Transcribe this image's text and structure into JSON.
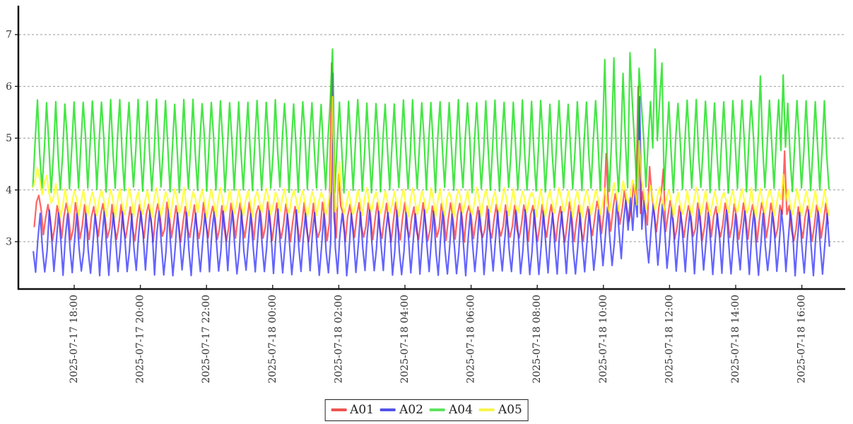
{
  "chart_data": {
    "type": "line",
    "title": "",
    "start_time": "2025-07-17 16:45",
    "end_time": "2025-07-18 16:50",
    "duration_min": 1446,
    "sample_note": "four periodic series sampled ~every 4 min, period ~17 min",
    "x_axis": {
      "tick_labels": [
        "2025-07-17 18:00",
        "2025-07-17 20:00",
        "2025-07-17 22:00",
        "2025-07-18 00:00",
        "2025-07-18 02:00",
        "2025-07-18 04:00",
        "2025-07-18 06:00",
        "2025-07-18 08:00",
        "2025-07-18 10:00",
        "2025-07-18 12:00",
        "2025-07-18 14:00",
        "2025-07-18 16:00"
      ],
      "first_tick_offset_min": 75,
      "tick_interval_min": 120,
      "label_rotation_deg": 90
    },
    "y_axis": {
      "ticks": [
        3,
        4,
        5,
        6,
        7
      ],
      "min": 2.08,
      "max": 7.53,
      "label": ""
    },
    "grid": {
      "horizontal": true,
      "style": "dashed",
      "color": "#999999"
    },
    "series": [
      {
        "name": "A01",
        "color": "#ff2a2a",
        "opacity": 0.73,
        "seed": 11,
        "pattern": {
          "min": 3.05,
          "max": 3.72,
          "period_min": 16.6,
          "phase_min": 2.5,
          "mid_jitter": 0.16
        },
        "elevations": [
          {
            "center_min": 0,
            "half_width_min": 30,
            "amount": 0.3
          },
          {
            "center_min": 1090,
            "half_width_min": 80,
            "amount": 0.35
          }
        ],
        "spikes": [
          {
            "t_min": 543.5,
            "peak": 6.45,
            "time": "2025-07-18 01:48"
          },
          {
            "t_min": 556,
            "peak": 4.3,
            "time": "2025-07-18 02:01"
          },
          {
            "t_min": 1040,
            "peak": 4.7,
            "time": "2025-07-18 10:05"
          },
          {
            "t_min": 1100,
            "peak": 6.0,
            "time": "2025-07-18 11:05"
          },
          {
            "t_min": 1120,
            "peak": 4.45,
            "time": "2025-07-18 11:25"
          },
          {
            "t_min": 1143,
            "peak": 4.4,
            "time": "2025-07-18 11:48"
          },
          {
            "t_min": 1365,
            "peak": 4.75,
            "time": "2025-07-18 15:30"
          }
        ]
      },
      {
        "name": "A02",
        "color": "#2a2aff",
        "opacity": 0.73,
        "seed": 22,
        "pattern": {
          "min": 2.4,
          "max": 3.58,
          "period_min": 16.6,
          "phase_min": 5.0,
          "mid_jitter": 0.2
        },
        "elevations": [
          {
            "center_min": 1090,
            "half_width_min": 80,
            "amount": 0.32
          }
        ],
        "spikes": [
          {
            "t_min": 544,
            "peak": 6.25,
            "time": "2025-07-18 01:49"
          },
          {
            "t_min": 1085,
            "peak": 3.85,
            "time": "2025-07-18 10:50"
          },
          {
            "t_min": 1100,
            "peak": 5.8,
            "time": "2025-07-18 11:05"
          }
        ]
      },
      {
        "name": "A04",
        "color": "#00dd00",
        "opacity": 0.73,
        "seed": 44,
        "pattern": {
          "min": 4.0,
          "max": 5.7,
          "period_min": 16.6,
          "phase_min": 0.0,
          "mid_jitter": 0.18
        },
        "elevations": [],
        "spikes": [
          {
            "t_min": 543,
            "peak": 6.72,
            "time": "2025-07-18 01:48"
          },
          {
            "t_min": 1036,
            "peak": 6.52,
            "time": "2025-07-18 10:01"
          },
          {
            "t_min": 1056,
            "peak": 6.55,
            "time": "2025-07-18 10:21"
          },
          {
            "t_min": 1071,
            "peak": 6.25,
            "time": "2025-07-18 10:36"
          },
          {
            "t_min": 1085,
            "peak": 6.65,
            "time": "2025-07-18 10:50"
          },
          {
            "t_min": 1098,
            "peak": 6.35,
            "time": "2025-07-18 11:03"
          },
          {
            "t_min": 1130,
            "peak": 6.72,
            "time": "2025-07-18 11:35"
          },
          {
            "t_min": 1141,
            "peak": 6.45,
            "time": "2025-07-18 11:46"
          },
          {
            "t_min": 1319,
            "peak": 6.2,
            "time": "2025-07-18 14:44"
          },
          {
            "t_min": 1363,
            "peak": 6.22,
            "time": "2025-07-18 15:28"
          }
        ]
      },
      {
        "name": "A05",
        "color": "#ffff00",
        "opacity": 0.72,
        "seed": 55,
        "pattern": {
          "min": 3.52,
          "max": 4.0,
          "period_min": 16.6,
          "phase_min": 0.2,
          "mid_jitter": 0.09
        },
        "elevations": [
          {
            "center_min": 0,
            "half_width_min": 50,
            "amount": 0.5
          },
          {
            "center_min": 1090,
            "half_width_min": 70,
            "amount": 0.2
          }
        ],
        "spikes": [
          {
            "t_min": 543,
            "peak": 5.8,
            "time": "2025-07-18 01:48"
          },
          {
            "t_min": 556,
            "peak": 4.55,
            "time": "2025-07-18 02:01"
          },
          {
            "t_min": 1100,
            "peak": 4.95,
            "time": "2025-07-18 11:05"
          },
          {
            "t_min": 1363,
            "peak": 4.3,
            "time": "2025-07-18 15:28"
          }
        ]
      }
    ],
    "legend": {
      "position": "bottom-center",
      "items": [
        {
          "label": "A01",
          "color": "#ee5450"
        },
        {
          "label": "A02",
          "color": "#5053e8"
        },
        {
          "label": "A04",
          "color": "#5ee35e"
        },
        {
          "label": "A05",
          "color": "#f6f64d"
        }
      ]
    }
  }
}
